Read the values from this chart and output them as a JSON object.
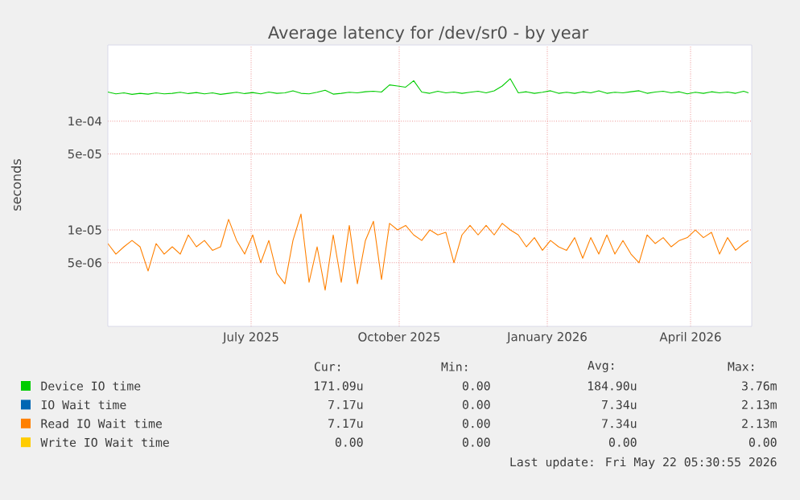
{
  "chart_data": {
    "type": "line",
    "title": "Average latency for /dev/sr0 - by year",
    "ylabel": "seconds",
    "x": [
      "2025-04-19",
      "2025-04-24",
      "2025-04-29",
      "2025-05-04",
      "2025-05-09",
      "2025-05-14",
      "2025-05-19",
      "2025-05-24",
      "2025-05-29",
      "2025-06-03",
      "2025-06-08",
      "2025-06-13",
      "2025-06-18",
      "2025-06-23",
      "2025-06-28",
      "2025-07-03",
      "2025-07-08",
      "2025-07-13",
      "2025-07-18",
      "2025-07-23",
      "2025-07-28",
      "2025-08-02",
      "2025-08-07",
      "2025-08-12",
      "2025-08-17",
      "2025-08-22",
      "2025-08-27",
      "2025-09-01",
      "2025-09-06",
      "2025-09-11",
      "2025-09-16",
      "2025-09-21",
      "2025-09-26",
      "2025-10-01",
      "2025-10-06",
      "2025-10-11",
      "2025-10-16",
      "2025-10-21",
      "2025-10-26",
      "2025-10-31",
      "2025-11-05",
      "2025-11-10",
      "2025-11-15",
      "2025-11-20",
      "2025-11-25",
      "2025-11-30",
      "2025-12-05",
      "2025-12-10",
      "2025-12-15",
      "2025-12-20",
      "2025-12-25",
      "2025-12-30",
      "2026-01-04",
      "2026-01-09",
      "2026-01-14",
      "2026-01-19",
      "2026-01-24",
      "2026-01-29",
      "2026-02-03",
      "2026-02-08",
      "2026-02-13",
      "2026-02-18",
      "2026-02-23",
      "2026-02-28",
      "2026-03-05",
      "2026-03-10",
      "2026-03-15",
      "2026-03-20",
      "2026-03-25",
      "2026-03-30",
      "2026-04-04",
      "2026-04-09",
      "2026-04-14",
      "2026-04-19",
      "2026-04-24",
      "2026-04-29",
      "2026-05-04",
      "2026-05-09",
      "2026-05-14",
      "2026-05-19",
      "2026-05-22"
    ],
    "series": [
      {
        "name": "Device IO time",
        "color": "#00cc00",
        "values": [
          0.000185,
          0.000178,
          0.000182,
          0.000176,
          0.00018,
          0.000177,
          0.000182,
          0.000178,
          0.00018,
          0.000184,
          0.000179,
          0.000183,
          0.000178,
          0.000182,
          0.000176,
          0.00018,
          0.000184,
          0.000179,
          0.000183,
          0.000178,
          0.000185,
          0.00018,
          0.000182,
          0.00019,
          0.00018,
          0.000178,
          0.000184,
          0.000192,
          0.000177,
          0.00018,
          0.000184,
          0.000182,
          0.000186,
          0.000188,
          0.000185,
          0.000215,
          0.00021,
          0.000205,
          0.000235,
          0.000185,
          0.00018,
          0.000188,
          0.000182,
          0.000185,
          0.00018,
          0.000184,
          0.000188,
          0.000182,
          0.00019,
          0.00021,
          0.000245,
          0.000182,
          0.000186,
          0.00018,
          0.000184,
          0.00019,
          0.00018,
          0.000184,
          0.00018,
          0.000186,
          0.000182,
          0.00019,
          0.00018,
          0.000184,
          0.000182,
          0.000186,
          0.00019,
          0.00018,
          0.000185,
          0.000188,
          0.000182,
          0.000186,
          0.000178,
          0.000184,
          0.00018,
          0.000186,
          0.000182,
          0.000185,
          0.00018,
          0.000188,
          0.000182
        ]
      },
      {
        "name": "IO Wait time",
        "color": "#0066b3",
        "values": [
          null,
          null,
          null,
          null,
          null,
          null,
          null,
          null,
          null,
          null,
          null,
          null,
          null,
          null,
          null,
          null,
          null,
          null,
          null,
          null,
          null,
          null,
          null,
          null,
          null,
          null,
          null,
          null,
          null,
          null,
          null,
          null,
          null,
          null,
          null,
          null,
          null,
          null,
          null,
          null,
          null,
          null,
          null,
          null,
          null,
          null,
          null,
          null,
          null,
          null,
          null,
          null,
          null,
          null,
          null,
          null,
          null,
          null,
          null,
          null,
          null,
          null,
          null,
          null,
          null,
          null,
          null,
          null,
          null,
          null,
          null,
          null,
          null,
          null,
          null,
          null,
          null,
          null,
          null,
          null,
          null
        ]
      },
      {
        "name": "Read IO Wait time",
        "color": "#ff8000",
        "values": [
          7.5e-06,
          6e-06,
          7e-06,
          8e-06,
          7e-06,
          4.2e-06,
          7.5e-06,
          6e-06,
          7e-06,
          6e-06,
          9e-06,
          7e-06,
          8e-06,
          6.5e-06,
          7e-06,
          1.25e-05,
          8e-06,
          6e-06,
          9e-06,
          5e-06,
          8e-06,
          4e-06,
          3.2e-06,
          8e-06,
          1.4e-05,
          3.3e-06,
          7e-06,
          2.8e-06,
          9e-06,
          3.3e-06,
          1.1e-05,
          3.2e-06,
          8e-06,
          1.2e-05,
          3.5e-06,
          1.15e-05,
          1e-05,
          1.1e-05,
          9e-06,
          8e-06,
          1e-05,
          9e-06,
          9.5e-06,
          5e-06,
          9e-06,
          1.1e-05,
          9e-06,
          1.1e-05,
          9e-06,
          1.15e-05,
          1e-05,
          9e-06,
          7e-06,
          8.5e-06,
          6.5e-06,
          8e-06,
          7e-06,
          6.5e-06,
          8.5e-06,
          5.5e-06,
          8.5e-06,
          6e-06,
          9e-06,
          6e-06,
          8e-06,
          6e-06,
          5e-06,
          9e-06,
          7.5e-06,
          8.5e-06,
          7e-06,
          8e-06,
          8.5e-06,
          1e-05,
          8.5e-06,
          9.5e-06,
          6e-06,
          8.5e-06,
          6.5e-06,
          7.5e-06,
          8e-06
        ]
      },
      {
        "name": "Write IO Wait time",
        "color": "#ffcc00",
        "values": [
          null,
          null,
          null,
          null,
          null,
          null,
          null,
          null,
          null,
          null,
          null,
          null,
          null,
          null,
          null,
          null,
          null,
          null,
          null,
          null,
          null,
          null,
          null,
          null,
          null,
          null,
          null,
          null,
          null,
          null,
          null,
          null,
          null,
          null,
          null,
          null,
          null,
          null,
          null,
          null,
          null,
          null,
          null,
          null,
          null,
          null,
          null,
          null,
          null,
          null,
          null,
          null,
          null,
          null,
          null,
          null,
          null,
          null,
          null,
          null,
          null,
          null,
          null,
          null,
          null,
          null,
          null,
          null,
          null,
          null,
          null,
          null,
          null,
          null,
          null,
          null,
          null,
          null,
          null,
          null,
          null
        ]
      }
    ],
    "log": "y",
    "grid": true,
    "legend": "bottom",
    "xlim": [
      "2025-04-19",
      "2026-05-24"
    ],
    "ylim": [
      1.3e-06,
      0.0005
    ],
    "xticks": [
      {
        "value": "2025-07-17",
        "label": "July 2025"
      },
      {
        "value": "2025-10-17",
        "label": "October 2025"
      },
      {
        "value": "2026-01-17",
        "label": "January 2026"
      },
      {
        "value": "2026-04-16",
        "label": "April 2026"
      }
    ],
    "yticks": [
      {
        "value": 5e-06,
        "label": "5e-06"
      },
      {
        "value": 1e-05,
        "label": "1e-05"
      },
      {
        "value": 5e-05,
        "label": "5e-05"
      },
      {
        "value": 0.0001,
        "label": "1e-04"
      }
    ],
    "annotations": [
      "Cur:",
      "Min:",
      "Avg:",
      "Max:",
      "171.09u",
      "0.00",
      "184.90u",
      "3.76m",
      "7.17u",
      "0.00",
      "7.34u",
      "2.13m",
      "7.17u",
      "0.00",
      "7.34u",
      "2.13m",
      "0.00",
      "0.00",
      "0.00",
      "0.00",
      "Last update: Fri May 22 05:30:55 2026"
    ]
  }
}
